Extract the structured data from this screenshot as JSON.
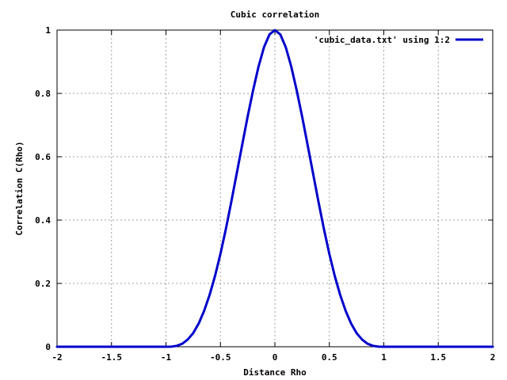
{
  "chart_data": {
    "type": "line",
    "title": "Cubic correlation",
    "xlabel": "Distance Rho",
    "ylabel": "Correlation C(Rho)",
    "xlim": [
      -2,
      2
    ],
    "ylim": [
      0,
      1
    ],
    "xticks": [
      -2,
      -1.5,
      -1,
      -0.5,
      0,
      0.5,
      1,
      1.5,
      2
    ],
    "xtick_labels": [
      "-2",
      "-1.5",
      "-1",
      "-0.5",
      "0",
      "0.5",
      "1",
      "1.5",
      "2"
    ],
    "yticks": [
      0,
      0.2,
      0.4,
      0.6,
      0.8,
      1
    ],
    "ytick_labels": [
      "0",
      "0.2",
      "0.4",
      "0.6",
      "0.8",
      "1"
    ],
    "grid": true,
    "legend_position": "top-right",
    "series": [
      {
        "name": "'cubic_data.txt' using 1:2",
        "color": "#0000cc",
        "x": [
          -2,
          -1.5,
          -1,
          -0.95,
          -0.9,
          -0.85,
          -0.8,
          -0.75,
          -0.7,
          -0.65,
          -0.6,
          -0.55,
          -0.5,
          -0.45,
          -0.4,
          -0.35,
          -0.3,
          -0.25,
          -0.2,
          -0.15,
          -0.1,
          -0.05,
          0,
          0.05,
          0.1,
          0.15,
          0.2,
          0.25,
          0.3,
          0.35,
          0.4,
          0.45,
          0.5,
          0.55,
          0.6,
          0.65,
          0.7,
          0.75,
          0.8,
          0.85,
          0.9,
          0.95,
          1,
          1.5,
          2
        ],
        "y": [
          0,
          0,
          0,
          0.0003,
          0.003,
          0.0096,
          0.023,
          0.043,
          0.073,
          0.113,
          0.163,
          0.223,
          0.293,
          0.372,
          0.458,
          0.548,
          0.638,
          0.727,
          0.81,
          0.885,
          0.946,
          0.986,
          1,
          0.986,
          0.946,
          0.885,
          0.81,
          0.727,
          0.638,
          0.548,
          0.458,
          0.372,
          0.293,
          0.223,
          0.163,
          0.113,
          0.073,
          0.043,
          0.023,
          0.0096,
          0.003,
          0.0003,
          0,
          0,
          0
        ]
      }
    ]
  }
}
